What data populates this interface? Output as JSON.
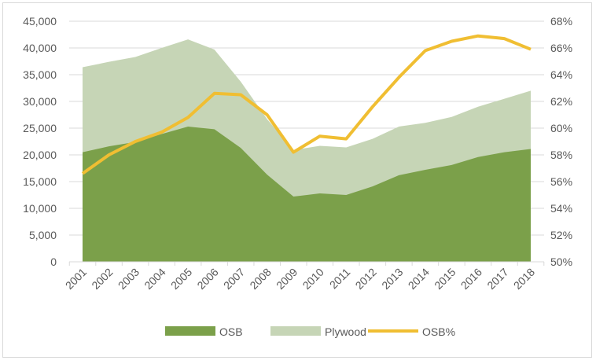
{
  "chart_data": {
    "type": "area",
    "stacked": true,
    "categories": [
      "2001",
      "2002",
      "2003",
      "2004",
      "2005",
      "2006",
      "2007",
      "2008",
      "2009",
      "2010",
      "2011",
      "2012",
      "2013",
      "2014",
      "2015",
      "2016",
      "2017",
      "2018"
    ],
    "series": [
      {
        "name": "OSB",
        "type": "area",
        "axis": "left",
        "color": "#7ba04a",
        "values": [
          20500,
          21600,
          22400,
          23900,
          25300,
          24800,
          21300,
          16300,
          12200,
          12800,
          12500,
          14100,
          16200,
          17200,
          18100,
          19600,
          20500,
          21100
        ]
      },
      {
        "name": "Plywood",
        "type": "area",
        "axis": "left",
        "color": "#c6d5b6",
        "values": [
          15900,
          15800,
          15900,
          16100,
          16300,
          14900,
          12400,
          10400,
          8700,
          8900,
          8900,
          8900,
          9100,
          8800,
          9000,
          9400,
          10000,
          10900
        ]
      },
      {
        "name": "OSB%",
        "type": "line",
        "axis": "right",
        "color": "#f0be32",
        "values": [
          56.6,
          58.0,
          59.0,
          59.7,
          60.8,
          62.6,
          62.5,
          61.0,
          58.2,
          59.4,
          59.2,
          61.6,
          63.8,
          65.8,
          66.5,
          66.9,
          66.7,
          65.9
        ]
      }
    ],
    "y_left": {
      "range": [
        0,
        45000
      ],
      "ticks": [
        "0",
        "5,000",
        "10,000",
        "15,000",
        "20,000",
        "25,000",
        "30,000",
        "35,000",
        "40,000",
        "45,000"
      ]
    },
    "y_right": {
      "range": [
        50,
        68
      ],
      "ticks": [
        "50%",
        "52%",
        "54%",
        "56%",
        "58%",
        "60%",
        "62%",
        "64%",
        "66%",
        "68%"
      ]
    },
    "grid": true,
    "legend": "bottom"
  }
}
